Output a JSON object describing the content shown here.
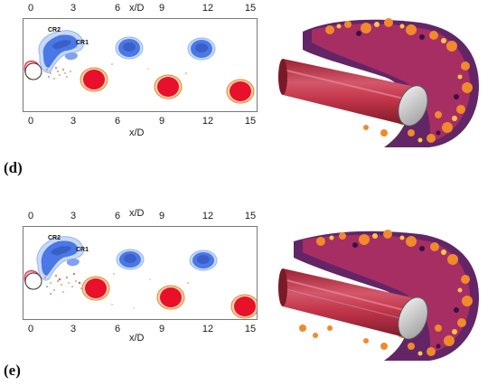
{
  "panels": [
    {
      "id": "d",
      "label": "(d)",
      "axis_label_top": "x/D",
      "axis_label_bottom": "x/D",
      "ticks_top": [
        "0",
        "3",
        "6",
        "9",
        "12",
        "15"
      ],
      "ticks_bottom": [
        "0",
        "3",
        "6",
        "9",
        "12",
        "15"
      ],
      "annotations": [
        "CR2",
        "CR1"
      ]
    },
    {
      "id": "e",
      "label": "(e)",
      "axis_label_top": "x/D",
      "axis_label_bottom": "x/D",
      "ticks_top": [
        "0",
        "3",
        "6",
        "9",
        "12",
        "15"
      ],
      "ticks_bottom": [
        "0",
        "3",
        "6",
        "9",
        "12",
        "15"
      ],
      "annotations": [
        "CR2",
        "CR1"
      ]
    }
  ],
  "colors": {
    "positive_vortex": "#e8102a",
    "negative_vortex": "#4a78e6",
    "cylinder_3d": "#c2354a",
    "cylinder_end": "#d8d8d8",
    "wake_structures": "#e5822b"
  }
}
